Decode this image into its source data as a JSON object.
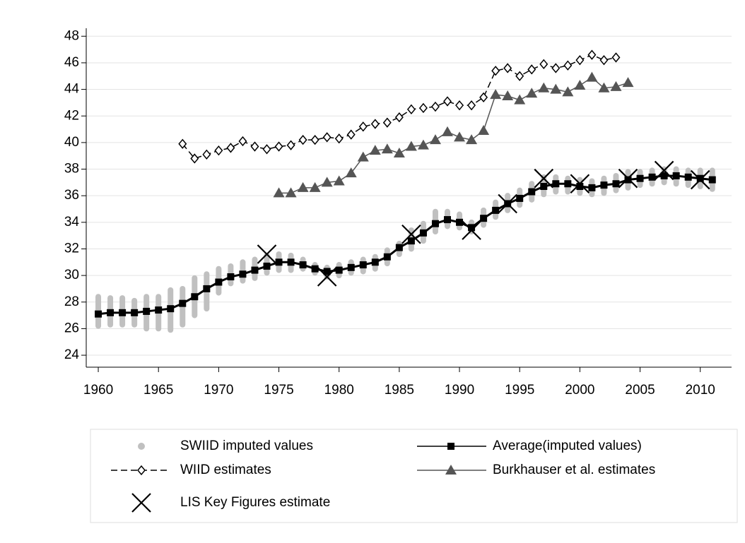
{
  "chart_data": {
    "type": "line",
    "xlim": [
      1959,
      2012.6
    ],
    "ylim": [
      23.1,
      48.6
    ],
    "xticks": [
      1960,
      1965,
      1970,
      1975,
      1980,
      1985,
      1990,
      1995,
      2000,
      2005,
      2010
    ],
    "yticks": [
      24,
      26,
      28,
      30,
      32,
      34,
      36,
      38,
      40,
      42,
      44,
      46,
      48
    ],
    "grid": true,
    "series": [
      {
        "name": "SWIID imputed values",
        "color": "#c0c0c0",
        "marker": "range",
        "line": "none",
        "x": [
          1960,
          1961,
          1962,
          1963,
          1964,
          1965,
          1966,
          1967,
          1968,
          1969,
          1970,
          1971,
          1972,
          1973,
          1974,
          1975,
          1976,
          1977,
          1978,
          1979,
          1980,
          1981,
          1982,
          1983,
          1984,
          1985,
          1986,
          1987,
          1988,
          1989,
          1990,
          1991,
          1992,
          1993,
          1994,
          1995,
          1996,
          1997,
          1998,
          1999,
          2000,
          2001,
          2002,
          2003,
          2004,
          2005,
          2006,
          2007,
          2008,
          2009,
          2010,
          2011
        ],
        "low": [
          26.2,
          26.3,
          26.3,
          26.3,
          26.0,
          26.0,
          25.9,
          26.3,
          27.0,
          27.5,
          28.7,
          29.4,
          29.6,
          29.8,
          30.2,
          30.4,
          30.4,
          30.5,
          30.2,
          29.9,
          30.0,
          30.2,
          30.3,
          30.5,
          30.9,
          31.6,
          32.0,
          32.6,
          33.3,
          33.7,
          33.6,
          33.3,
          33.8,
          34.4,
          34.9,
          35.3,
          35.7,
          36.1,
          36.3,
          36.3,
          36.2,
          36.1,
          36.2,
          36.4,
          36.6,
          36.8,
          36.9,
          37.0,
          36.9,
          36.8,
          36.7,
          36.5
        ],
        "high": [
          28.4,
          28.3,
          28.3,
          28.1,
          28.4,
          28.4,
          28.9,
          29.0,
          29.8,
          30.1,
          30.5,
          30.7,
          31.0,
          31.2,
          31.5,
          31.6,
          31.5,
          31.2,
          30.8,
          30.6,
          30.8,
          31.0,
          31.2,
          31.4,
          31.9,
          32.4,
          33.4,
          33.9,
          34.8,
          34.8,
          34.6,
          34.0,
          34.9,
          35.5,
          36.0,
          36.4,
          36.9,
          37.4,
          37.4,
          37.3,
          37.2,
          37.1,
          37.3,
          37.5,
          37.8,
          37.8,
          37.9,
          38.0,
          38.0,
          37.9,
          37.9,
          37.9
        ]
      },
      {
        "name": "Average(imputed values)",
        "color": "#000000",
        "marker": "square",
        "line": "solid",
        "x": [
          1960,
          1961,
          1962,
          1963,
          1964,
          1965,
          1966,
          1967,
          1968,
          1969,
          1970,
          1971,
          1972,
          1973,
          1974,
          1975,
          1976,
          1977,
          1978,
          1979,
          1980,
          1981,
          1982,
          1983,
          1984,
          1985,
          1986,
          1987,
          1988,
          1989,
          1990,
          1991,
          1992,
          1993,
          1994,
          1995,
          1996,
          1997,
          1998,
          1999,
          2000,
          2001,
          2002,
          2003,
          2004,
          2005,
          2006,
          2007,
          2008,
          2009,
          2010,
          2011
        ],
        "values": [
          27.1,
          27.2,
          27.2,
          27.2,
          27.3,
          27.4,
          27.5,
          27.9,
          28.4,
          29.0,
          29.5,
          29.9,
          30.1,
          30.4,
          30.7,
          31.0,
          31.0,
          30.8,
          30.5,
          30.3,
          30.4,
          30.6,
          30.8,
          31.0,
          31.4,
          32.1,
          32.6,
          33.2,
          33.9,
          34.2,
          34.0,
          33.6,
          34.3,
          34.9,
          35.4,
          35.8,
          36.3,
          36.7,
          36.9,
          36.9,
          36.7,
          36.6,
          36.8,
          36.9,
          37.2,
          37.3,
          37.4,
          37.5,
          37.5,
          37.4,
          37.3,
          37.2
        ]
      },
      {
        "name": "WIID estimates",
        "color": "#000000",
        "marker": "diamond",
        "line": "dashed",
        "x": [
          1967,
          1968,
          1969,
          1970,
          1971,
          1972,
          1973,
          1974,
          1975,
          1976,
          1977,
          1978,
          1979,
          1980,
          1981,
          1982,
          1983,
          1984,
          1985,
          1986,
          1987,
          1988,
          1989,
          1990,
          1991,
          1992,
          1993,
          1994,
          1995,
          1996,
          1997,
          1998,
          1999,
          2000,
          2001,
          2002,
          2003
        ],
        "values": [
          39.9,
          38.8,
          39.1,
          39.4,
          39.6,
          40.1,
          39.7,
          39.5,
          39.7,
          39.8,
          40.2,
          40.2,
          40.4,
          40.3,
          40.6,
          41.2,
          41.4,
          41.5,
          41.9,
          42.5,
          42.6,
          42.7,
          43.1,
          42.8,
          42.8,
          43.4,
          45.4,
          45.6,
          45.0,
          45.5,
          45.9,
          45.6,
          45.8,
          46.2,
          46.6,
          46.2,
          46.4
        ]
      },
      {
        "name": "Burkhauser et al. estimates",
        "color": "#555555",
        "marker": "triangle",
        "line": "solid",
        "x": [
          1975,
          1976,
          1977,
          1978,
          1979,
          1980,
          1981,
          1982,
          1983,
          1984,
          1985,
          1986,
          1987,
          1988,
          1989,
          1990,
          1991,
          1992,
          1993,
          1994,
          1995,
          1996,
          1997,
          1998,
          1999,
          2000,
          2001,
          2002,
          2003,
          2004
        ],
        "values": [
          36.2,
          36.2,
          36.6,
          36.6,
          37.0,
          37.1,
          37.7,
          38.9,
          39.4,
          39.5,
          39.2,
          39.7,
          39.8,
          40.2,
          40.8,
          40.4,
          40.2,
          40.9,
          43.6,
          43.5,
          43.2,
          43.7,
          44.1,
          44.0,
          43.8,
          44.3,
          44.9,
          44.1,
          44.2,
          44.5
        ]
      },
      {
        "name": "LIS Key Figures estimate",
        "color": "#000000",
        "marker": "cross",
        "line": "none",
        "x": [
          1974,
          1979,
          1986,
          1991,
          1994,
          1997,
          2000,
          2004,
          2007,
          2010
        ],
        "values": [
          31.6,
          29.9,
          33.1,
          33.4,
          35.4,
          37.3,
          36.9,
          37.3,
          37.9,
          37.2
        ]
      }
    ]
  }
}
